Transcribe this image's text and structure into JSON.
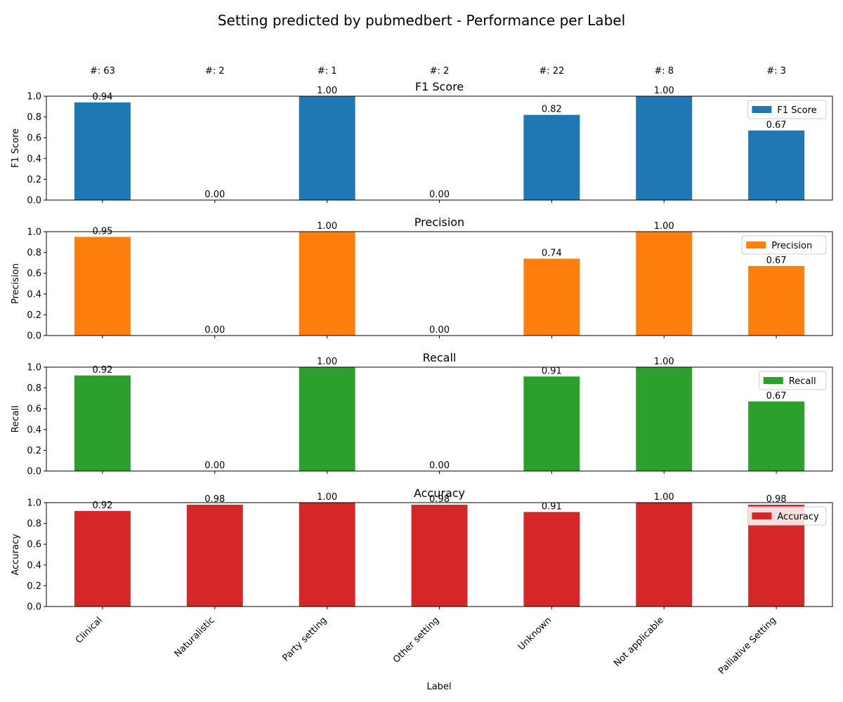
{
  "suptitle": "Setting predicted by pubmedbert - Performance per Label",
  "chart_data": {
    "type": "bar",
    "categories": [
      "Clinical",
      "Naturalistic",
      "Party setting",
      "Other setting",
      "Unknown",
      "Not applicable",
      "Palliative Setting"
    ],
    "support_labels": [
      "#: 63",
      "#: 2",
      "#: 1",
      "#: 2",
      "#: 22",
      "#: 8",
      "#: 3"
    ],
    "xlabel": "Label",
    "ylim": [
      0,
      1
    ],
    "yticks": [
      "0.0",
      "0.2",
      "0.4",
      "0.6",
      "0.8",
      "1.0"
    ],
    "grid": false,
    "legend_position": "upper right",
    "panels": [
      {
        "title": "F1 Score",
        "ylabel": "F1 Score",
        "legend": "F1 Score",
        "color": "#1f77b4",
        "values": [
          0.94,
          0.0,
          1.0,
          0.0,
          0.82,
          1.0,
          0.67
        ],
        "value_labels": [
          "0.94",
          "0.00",
          "1.00",
          "0.00",
          "0.82",
          "1.00",
          "0.67"
        ]
      },
      {
        "title": "Precision",
        "ylabel": "Precision",
        "legend": "Precision",
        "color": "#ff7f0e",
        "values": [
          0.95,
          0.0,
          1.0,
          0.0,
          0.74,
          1.0,
          0.67
        ],
        "value_labels": [
          "0.95",
          "0.00",
          "1.00",
          "0.00",
          "0.74",
          "1.00",
          "0.67"
        ]
      },
      {
        "title": "Recall",
        "ylabel": "Recall",
        "legend": "Recall",
        "color": "#2ca02c",
        "values": [
          0.92,
          0.0,
          1.0,
          0.0,
          0.91,
          1.0,
          0.67
        ],
        "value_labels": [
          "0.92",
          "0.00",
          "1.00",
          "0.00",
          "0.91",
          "1.00",
          "0.67"
        ]
      },
      {
        "title": "Accuracy",
        "ylabel": "Accuracy",
        "legend": "Accuracy",
        "color": "#d62728",
        "values": [
          0.92,
          0.98,
          1.0,
          0.98,
          0.91,
          1.0,
          0.98
        ],
        "value_labels": [
          "0.92",
          "0.98",
          "1.00",
          "0.98",
          "0.91",
          "1.00",
          "0.98"
        ]
      }
    ]
  }
}
